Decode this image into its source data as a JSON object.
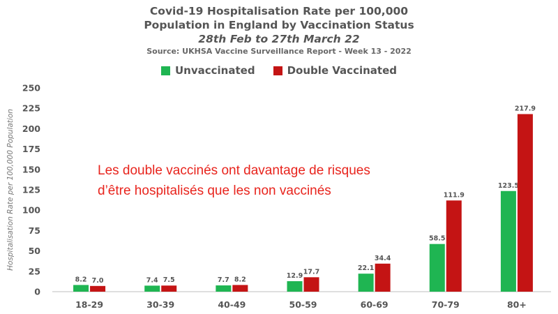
{
  "chart_data": {
    "type": "bar",
    "title_line1": "Covid-19 Hospitalisation Rate per 100,000",
    "title_line2": "Population in England by Vaccination Status",
    "subtitle": "28th Feb to 27th March 22",
    "source": "Source: UKHSA Vaccine Surveillance Report - Week 13 - 2022",
    "ylabel": "Hospitalisation Rate per 100,000 Population",
    "xlabel": "",
    "ylim": [
      0,
      250
    ],
    "yticks": [
      0,
      25,
      50,
      75,
      100,
      125,
      150,
      175,
      200,
      225,
      250
    ],
    "grid": false,
    "legend_position": "top-center",
    "categories": [
      "18-29",
      "30-39",
      "40-49",
      "50-59",
      "60-69",
      "70-79",
      "80+"
    ],
    "series": [
      {
        "name": "Unvaccinated",
        "color": "#1fb552",
        "values": [
          8.2,
          7.4,
          7.7,
          12.9,
          22.1,
          58.5,
          123.5
        ],
        "labels": [
          "8.2",
          "7.4",
          "7.7",
          "12.9",
          "22.1",
          "58.5",
          "123.5"
        ]
      },
      {
        "name": "Double Vaccinated",
        "color": "#c41414",
        "values": [
          7.0,
          7.5,
          8.2,
          17.7,
          34.4,
          111.9,
          217.9
        ],
        "labels": [
          "7.0",
          "7.5",
          "8.2",
          "17.7",
          "34.4",
          "111.9",
          "217.9"
        ]
      }
    ],
    "annotation": {
      "line1": "Les double vaccinés ont davantage de risques",
      "line2": "d’être hospitalisés que les non vaccinés",
      "color": "#e8241d"
    }
  }
}
